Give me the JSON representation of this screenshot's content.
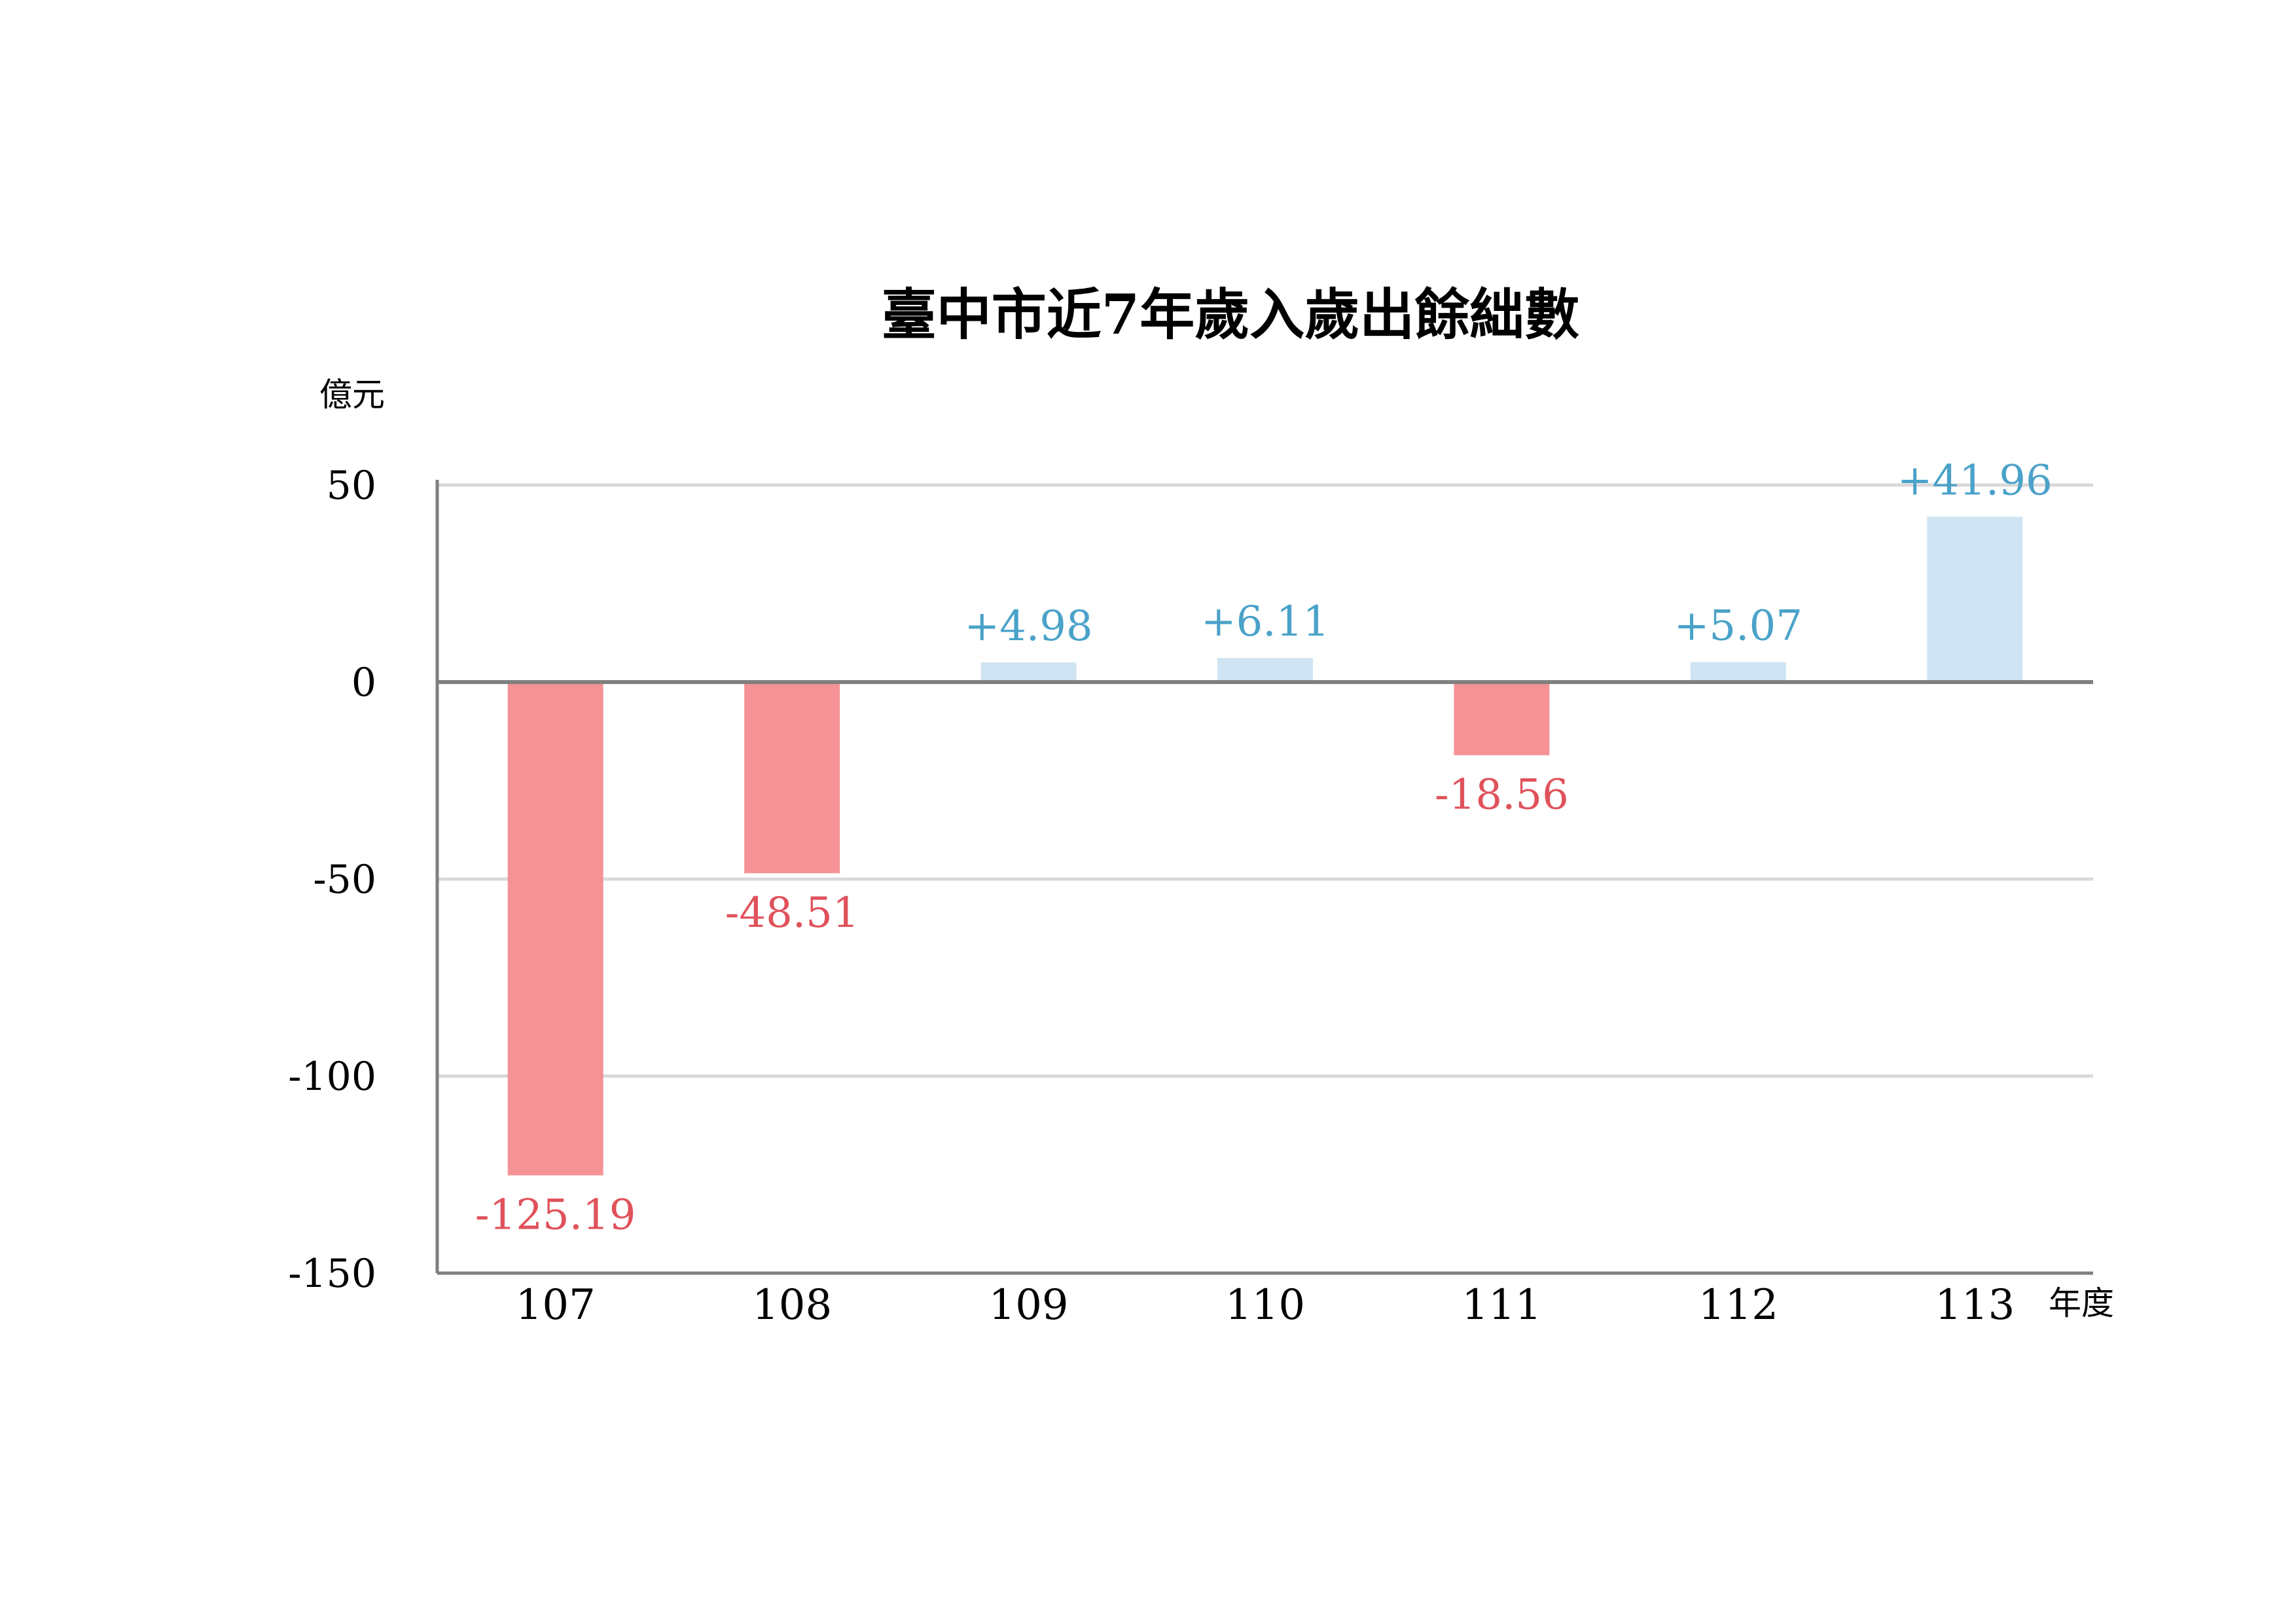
{
  "chart_data": {
    "type": "bar",
    "title": "臺中市近7年歲入歲出餘絀數",
    "ylabel": "億元",
    "xlabel": "年度",
    "categories": [
      "107",
      "108",
      "109",
      "110",
      "111",
      "112",
      "113"
    ],
    "values": [
      -125.19,
      -48.51,
      4.98,
      6.11,
      -18.56,
      5.07,
      41.96
    ],
    "data_labels": [
      "-125.19",
      "-48.51",
      "+4.98",
      "+6.11",
      "-18.56",
      "+5.07",
      "+41.96"
    ],
    "ylim": [
      -150,
      50
    ],
    "yticks": [
      50,
      0,
      -50,
      -100,
      -150
    ],
    "ytick_labels": [
      "50",
      "0",
      "-50",
      "-100",
      "-150"
    ],
    "grid": true,
    "colors": {
      "positive_bar": "#cfe4f2",
      "negative_bar": "#f49295",
      "positive_label": "#4aa2c9",
      "negative_label": "#e0525b",
      "grid": "#d9d9d9",
      "axis": "#7f7f7f"
    }
  }
}
